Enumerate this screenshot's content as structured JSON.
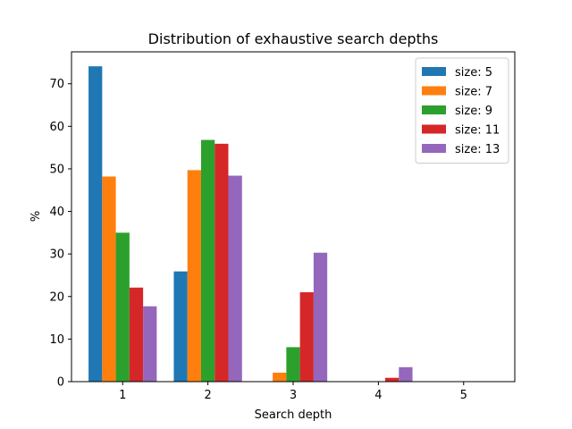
{
  "chart_data": {
    "type": "bar",
    "title": "Distribution of exhaustive search depths",
    "xlabel": "Search depth",
    "ylabel": "%",
    "categories": [
      "1",
      "2",
      "3",
      "4",
      "5"
    ],
    "ylim": [
      0,
      77.5
    ],
    "yticks": [
      0,
      10,
      20,
      30,
      40,
      50,
      60,
      70
    ],
    "grid": false,
    "legend_position": "top-right",
    "series": [
      {
        "name": "size: 5",
        "color": "#1f77b4",
        "values": [
          74.1,
          25.9,
          0,
          0,
          0
        ]
      },
      {
        "name": "size: 7",
        "color": "#ff7f0e",
        "values": [
          48.2,
          49.7,
          2.1,
          0,
          0
        ]
      },
      {
        "name": "size: 9",
        "color": "#2ca02c",
        "values": [
          35.0,
          56.8,
          8.1,
          0,
          0
        ]
      },
      {
        "name": "size: 11",
        "color": "#d62728",
        "values": [
          22.1,
          55.9,
          21.0,
          0.9,
          0
        ]
      },
      {
        "name": "size: 13",
        "color": "#9467bd",
        "values": [
          17.7,
          48.4,
          30.3,
          3.4,
          0
        ]
      }
    ]
  }
}
